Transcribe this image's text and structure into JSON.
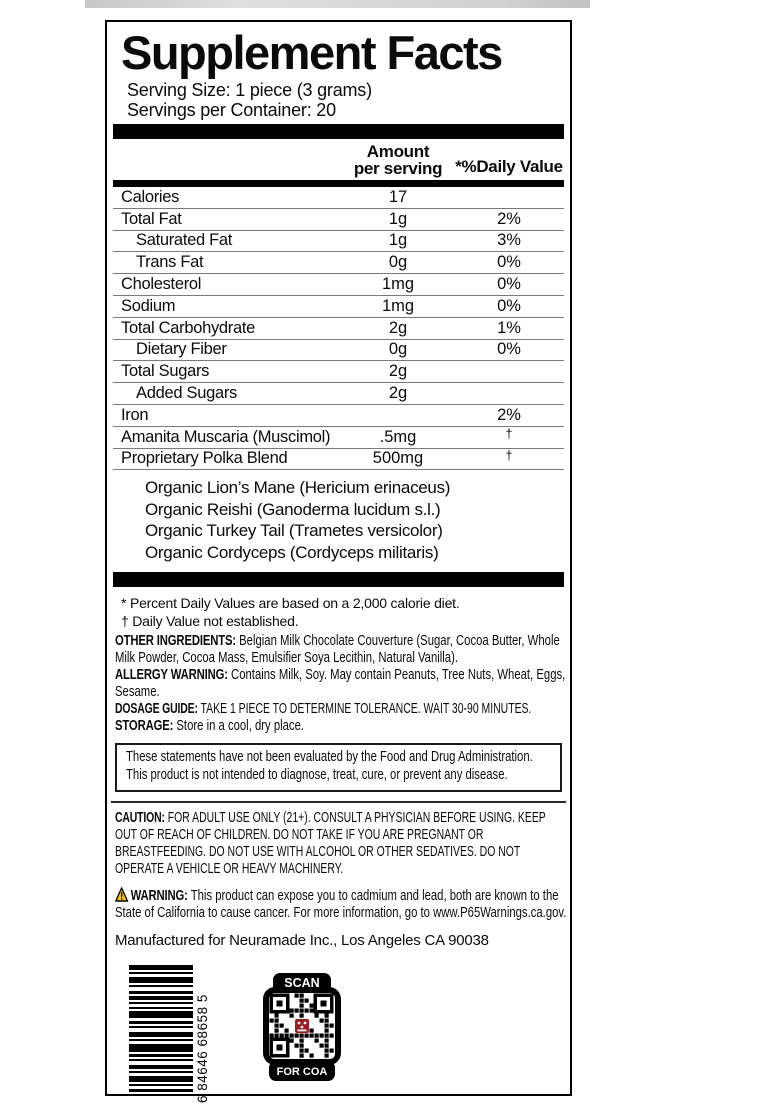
{
  "label": {
    "title": "Supplement Facts",
    "serving_size": "Serving Size: 1 piece (3 grams)",
    "servings_per_container": "Servings per Container: 20",
    "columns": {
      "amount_line1": "Amount",
      "amount_line2": "per serving",
      "daily_value": "*%Daily Value"
    },
    "nutrition_rows": [
      {
        "name": "Calories",
        "amount": "17",
        "dv": "",
        "indent": false
      },
      {
        "name": "Total Fat",
        "amount": "1g",
        "dv": "2%",
        "indent": false
      },
      {
        "name": "Saturated Fat",
        "amount": "1g",
        "dv": "3%",
        "indent": true
      },
      {
        "name": "Trans Fat",
        "amount": "0g",
        "dv": "0%",
        "indent": true
      },
      {
        "name": "Cholesterol",
        "amount": "1mg",
        "dv": "0%",
        "indent": false
      },
      {
        "name": "Sodium",
        "amount": "1mg",
        "dv": "0%",
        "indent": false
      },
      {
        "name": "Total Carbohydrate",
        "amount": "2g",
        "dv": "1%",
        "indent": false
      },
      {
        "name": "Dietary Fiber",
        "amount": "0g",
        "dv": "0%",
        "indent": true
      },
      {
        "name": "Total Sugars",
        "amount": "2g",
        "dv": "",
        "indent": false
      },
      {
        "name": "Added Sugars",
        "amount": "2g",
        "dv": "",
        "indent": true
      },
      {
        "name": "Iron",
        "amount": "",
        "dv": "2%",
        "indent": false
      },
      {
        "name": "Amanita Muscaria (Muscimol)",
        "amount": ".5mg",
        "dv": "†",
        "indent": false
      },
      {
        "name": "Proprietary Polka Blend",
        "amount": "500mg",
        "dv": "†",
        "indent": false
      }
    ],
    "blend_ingredients": [
      "Organic Lion’s Mane (Hericium erinaceus)",
      "Organic Reishi (Ganoderma lucidum s.l.)",
      "Organic Turkey Tail (Trametes versicolor)",
      "Organic Cordyceps (Cordyceps militaris)"
    ],
    "footnotes": {
      "percent_daily_values": "* Percent Daily Values are based on a 2,000 calorie diet.",
      "daily_value_not_established": "† Daily Value not established."
    },
    "other_ingredients": {
      "label": "OTHER INGREDIENTS:",
      "text": "Belgian Milk Chocolate Couverture (Sugar, Cocoa Butter, Whole Milk Powder, Cocoa Mass, Emulsifier Soya Lecithin, Natural Vanilla)."
    },
    "allergy_warning": {
      "label": "ALLERGY WARNING:",
      "text": "Contains Milk, Soy. May contain Peanuts, Tree Nuts, Wheat, Eggs, Sesame."
    },
    "dosage_guide": {
      "label": "DOSAGE GUIDE:",
      "text": "TAKE 1 PIECE TO DETERMINE TOLERANCE. WAIT 30-90 MINUTES."
    },
    "storage": {
      "label": "STORAGE:",
      "text": "Store in a cool, dry place."
    },
    "fda_disclaimer": "These statements have not been evaluated by the Food and Drug Administration. This product is not intended to diagnose, treat, cure, or prevent any disease.",
    "caution": {
      "label": "CAUTION:",
      "text": "FOR ADULT USE ONLY (21+). CONSULT A PHYSICIAN BEFORE USING. KEEP OUT OF REACH OF CHILDREN. DO NOT TAKE IF YOU ARE PREGNANT OR BREASTFEEDING. DO NOT USE WITH ALCOHOL OR OTHER SEDATIVES.  DO NOT OPERATE A VEHICLE OR HEAVY MACHINERY."
    },
    "prop65_warning": {
      "icon": "warning-triangle-icon",
      "icon_color": "#f7c600",
      "label": "WARNING:",
      "text": "This product can expose you to cadmium and lead, both are known to the State of California to cause cancer. For more information, go to www.P65Warnings.ca.gov."
    },
    "manufacturer": "Manufactured for Neuramade Inc., Los Angeles CA 90038",
    "barcode": {
      "digits": "6 84646 68658 5"
    },
    "qr": {
      "top_label": "SCAN",
      "bottom_label": "FOR COA",
      "center_logo_color": "#9b1b20"
    }
  }
}
